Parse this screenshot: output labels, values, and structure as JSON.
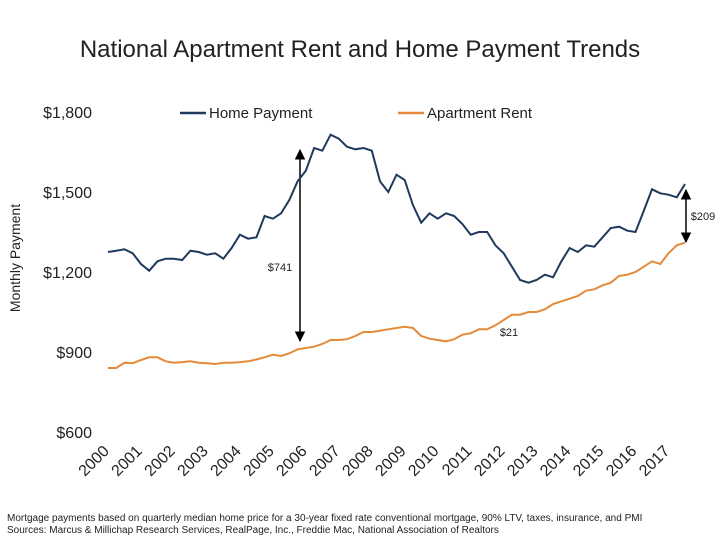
{
  "chart_data": {
    "type": "line",
    "title": "National Apartment Rent and Home Payment Trends",
    "y_label": "Monthly Payment",
    "notes": [
      "Mortgage payments based on quarterly median home price for a 30-year fixed rate conventional mortgage, 90% LTV, taxes, insurance, and PMI",
      "Sources: Marcus & Millichap Research Services, RealPage, Inc., Freddie Mac, National Association of Realtors"
    ],
    "annotations": [
      "$741",
      "$21",
      "$209"
    ],
    "x": [
      2000,
      2000.25,
      2000.5,
      2000.75,
      2001,
      2001.25,
      2001.5,
      2001.75,
      2002,
      2002.25,
      2002.5,
      2002.75,
      2003,
      2003.25,
      2003.5,
      2003.75,
      2004,
      2004.25,
      2004.5,
      2004.75,
      2005,
      2005.25,
      2005.5,
      2005.75,
      2006,
      2006.25,
      2006.5,
      2006.75,
      2007,
      2007.25,
      2007.5,
      2007.75,
      2008,
      2008.25,
      2008.5,
      2008.75,
      2009,
      2009.25,
      2009.5,
      2009.75,
      2010,
      2010.25,
      2010.5,
      2010.75,
      2011,
      2011.25,
      2011.5,
      2011.75,
      2012,
      2012.25,
      2012.5,
      2012.75,
      2013,
      2013.25,
      2013.5,
      2013.75,
      2014,
      2014.25,
      2014.5,
      2014.75,
      2015,
      2015.25,
      2015.5,
      2015.75,
      2016,
      2016.25,
      2016.5,
      2016.75,
      2017,
      2017.25,
      2017.5
    ],
    "series": [
      {
        "name": "Home Payment",
        "color": "#1f3a5c",
        "values": [
          1275,
          1280,
          1285,
          1270,
          1230,
          1205,
          1240,
          1250,
          1250,
          1245,
          1280,
          1275,
          1265,
          1270,
          1250,
          1290,
          1340,
          1325,
          1330,
          1410,
          1400,
          1420,
          1470,
          1540,
          1580,
          1665,
          1655,
          1715,
          1700,
          1670,
          1660,
          1665,
          1655,
          1540,
          1500,
          1565,
          1545,
          1450,
          1385,
          1420,
          1400,
          1420,
          1410,
          1380,
          1340,
          1350,
          1350,
          1300,
          1270,
          1220,
          1170,
          1160,
          1170,
          1190,
          1180,
          1240,
          1290,
          1275,
          1300,
          1295,
          1330,
          1365,
          1370,
          1355,
          1350,
          1430,
          1510,
          1495,
          1490,
          1480,
          1530
        ]
      },
      {
        "name": "Apartment Rent",
        "color": "#e38b3a",
        "values": [
          840,
          840,
          860,
          858,
          870,
          880,
          880,
          865,
          860,
          862,
          865,
          860,
          858,
          855,
          860,
          860,
          862,
          865,
          872,
          880,
          890,
          885,
          895,
          910,
          915,
          920,
          930,
          945,
          945,
          948,
          960,
          975,
          975,
          980,
          985,
          990,
          995,
          990,
          960,
          950,
          945,
          940,
          948,
          965,
          970,
          985,
          985,
          1000,
          1020,
          1040,
          1040,
          1050,
          1050,
          1060,
          1080,
          1090,
          1100,
          1110,
          1130,
          1135,
          1150,
          1160,
          1185,
          1190,
          1200,
          1220,
          1240,
          1230,
          1270,
          1300,
          1310
        ]
      }
    ],
    "xlim": [
      2000,
      2017.5
    ],
    "xticks": [
      2000,
      2001,
      2002,
      2003,
      2004,
      2005,
      2006,
      2007,
      2008,
      2009,
      2010,
      2011,
      2012,
      2013,
      2014,
      2015,
      2016,
      2017
    ],
    "ylim": [
      600,
      1800
    ],
    "yticks": [
      {
        "value": 600,
        "label": "$600"
      },
      {
        "value": 900,
        "label": "$900"
      },
      {
        "value": 1200,
        "label": "$1,200"
      },
      {
        "value": 1500,
        "label": "$1,500"
      },
      {
        "value": 1800,
        "label": "$1,800"
      }
    ],
    "legend": "top"
  }
}
